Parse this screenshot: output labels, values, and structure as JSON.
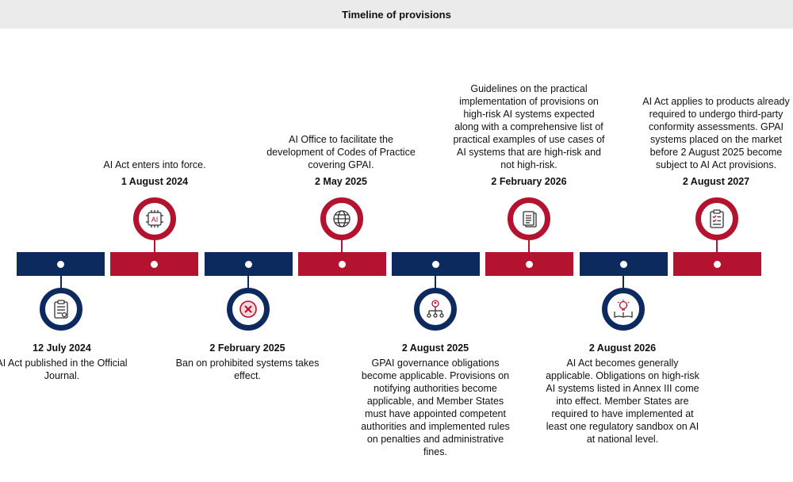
{
  "title": "Timeline of provisions",
  "milestones": [
    {
      "date": "12 July 2024",
      "text": "AI Act published in the Official Journal.",
      "color": "#0d2a5e",
      "icon": "clipboard-document-icon"
    },
    {
      "date": "1 August 2024",
      "text": "AI Act enters into force.",
      "color": "#b3132e",
      "icon": "ai-chip-icon",
      "icon_label": "AI"
    },
    {
      "date": "2 February 2025",
      "text": "Ban on prohibited systems takes effect.",
      "color": "#0d2a5e",
      "icon": "prohibited-x-icon"
    },
    {
      "date": "2 May 2025",
      "text": "AI Office to facilitate the development of Codes of Practice covering GPAI.",
      "color": "#b3132e",
      "icon": "globe-icon"
    },
    {
      "date": "2 August 2025",
      "text": "GPAI governance obligations become applicable. Provisions on notifying authorities become applicable, and Member States must have appointed competent authorities and implemented rules on penalties and administrative fines.",
      "color": "#0d2a5e",
      "icon": "org-hierarchy-icon"
    },
    {
      "date": "2 February 2026",
      "text": "Guidelines on the practical implementation of provisions on high-risk AI systems expected along with a comprehensive list of practical examples of use cases of AI systems that are high-risk and not high-risk.",
      "color": "#b3132e",
      "icon": "document-stack-icon"
    },
    {
      "date": "2 August 2026",
      "text": "AI Act becomes generally applicable. Obligations on high-risk AI systems listed in Annex III come into effect. Member States are required to have implemented at least one regulatory sandbox on AI at national level.",
      "color": "#0d2a5e",
      "icon": "book-lightbulb-icon"
    },
    {
      "date": "2 August 2027",
      "text": "AI Act applies to products already required to undergo third-party conformity assessments. GPAI systems placed on the market before 2 August 2025 become subject to AI Act provisions.",
      "color": "#b3132e",
      "icon": "clipboard-checklist-icon"
    }
  ]
}
